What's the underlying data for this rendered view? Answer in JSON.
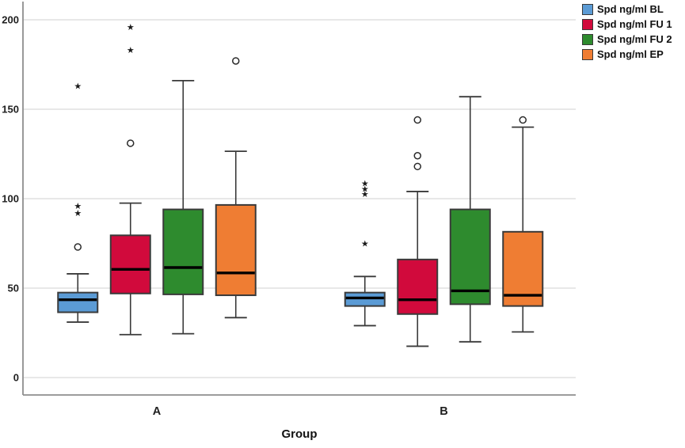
{
  "chart_data": {
    "type": "boxplot",
    "title": "",
    "xlabel": "Group",
    "ylabel": "",
    "groups": [
      "A",
      "B"
    ],
    "y_axis": {
      "min": 0,
      "max": 200,
      "ticks": [
        0,
        50,
        100,
        150,
        200
      ],
      "grid": true
    },
    "legend_position": "top-right",
    "series": [
      {
        "name": "Spd ng/ml BL",
        "color": "#5B9BD5",
        "boxes": [
          {
            "group": "A",
            "whisker_low": 31,
            "q1": 36.5,
            "median": 43.5,
            "q3": 47.5,
            "whisker_high": 58,
            "outliers": [
              {
                "value": 73,
                "type": "circle"
              },
              {
                "value": 92,
                "type": "star"
              },
              {
                "value": 96,
                "type": "star"
              },
              {
                "value": 163,
                "type": "star"
              }
            ]
          },
          {
            "group": "B",
            "whisker_low": 29,
            "q1": 40,
            "median": 44.5,
            "q3": 47.5,
            "whisker_high": 56.5,
            "outliers": [
              {
                "value": 75,
                "type": "star"
              },
              {
                "value": 102.5,
                "type": "star"
              },
              {
                "value": 105.5,
                "type": "star"
              },
              {
                "value": 108.5,
                "type": "star"
              }
            ]
          }
        ]
      },
      {
        "name": "Spd ng/ml FU 1",
        "color": "#D10A3C",
        "boxes": [
          {
            "group": "A",
            "whisker_low": 24,
            "q1": 47,
            "median": 60.5,
            "q3": 79.5,
            "whisker_high": 97.5,
            "outliers": [
              {
                "value": 131,
                "type": "circle"
              },
              {
                "value": 183,
                "type": "star"
              },
              {
                "value": 196,
                "type": "star"
              }
            ]
          },
          {
            "group": "B",
            "whisker_low": 17.5,
            "q1": 35.5,
            "median": 43.5,
            "q3": 66,
            "whisker_high": 104,
            "outliers": [
              {
                "value": 118,
                "type": "circle"
              },
              {
                "value": 124,
                "type": "circle"
              },
              {
                "value": 144,
                "type": "circle"
              }
            ]
          }
        ]
      },
      {
        "name": "Spd ng/ml FU 2",
        "color": "#2E8B2E",
        "boxes": [
          {
            "group": "A",
            "whisker_low": 24.5,
            "q1": 46.5,
            "median": 61.5,
            "q3": 94,
            "whisker_high": 166,
            "outliers": []
          },
          {
            "group": "B",
            "whisker_low": 20,
            "q1": 41,
            "median": 48.5,
            "q3": 94,
            "whisker_high": 157,
            "outliers": []
          }
        ]
      },
      {
        "name": "Spd ng/ml EP",
        "color": "#EF7D33",
        "boxes": [
          {
            "group": "A",
            "whisker_low": 33.5,
            "q1": 46,
            "median": 58.5,
            "q3": 96.5,
            "whisker_high": 126.5,
            "outliers": [
              {
                "value": 177,
                "type": "circle"
              }
            ]
          },
          {
            "group": "B",
            "whisker_low": 25.5,
            "q1": 40,
            "median": 46,
            "q3": 81.5,
            "whisker_high": 140,
            "outliers": [
              {
                "value": 144,
                "type": "circle"
              }
            ]
          }
        ]
      }
    ]
  },
  "colors": {
    "grid": "#D9D9D9",
    "axis": "#8E8E8E",
    "box_border": "#3A3A3A",
    "median": "#000000",
    "outlier": "#2B2B2B",
    "text": "#1F1F1F"
  }
}
